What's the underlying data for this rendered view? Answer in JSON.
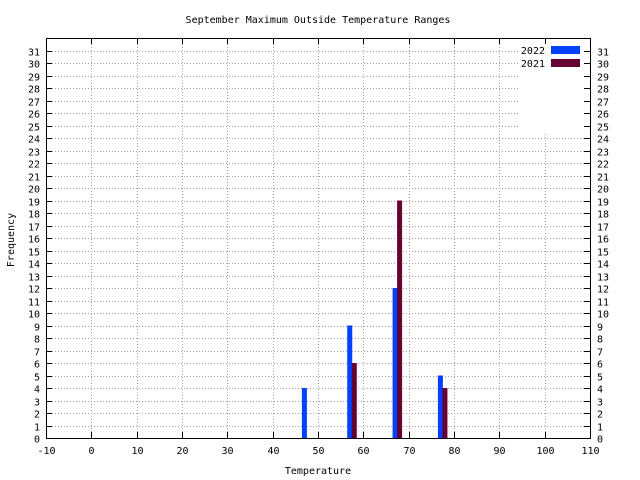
{
  "chart_data": {
    "type": "bar",
    "title": "September Maximum Outside Temperature Ranges",
    "xlabel": "Temperature",
    "ylabel": "Frequency",
    "xlim": [
      -10,
      110
    ],
    "ylim": [
      0,
      32
    ],
    "x_ticks": [
      -10,
      0,
      10,
      20,
      30,
      40,
      50,
      60,
      70,
      80,
      90,
      100,
      110
    ],
    "y_ticks": [
      0,
      1,
      2,
      3,
      4,
      5,
      6,
      7,
      8,
      9,
      10,
      11,
      12,
      13,
      14,
      15,
      16,
      17,
      18,
      19,
      20,
      21,
      22,
      23,
      24,
      25,
      26,
      27,
      28,
      29,
      30,
      31
    ],
    "grid": true,
    "legend_position": "top-right",
    "series": [
      {
        "name": "2022",
        "color": "#0040ff",
        "points": [
          {
            "x": 47,
            "y": 4
          },
          {
            "x": 57,
            "y": 9
          },
          {
            "x": 67,
            "y": 12
          },
          {
            "x": 77,
            "y": 5
          }
        ]
      },
      {
        "name": "2021",
        "color": "#660033",
        "points": [
          {
            "x": 58,
            "y": 6
          },
          {
            "x": 68,
            "y": 19
          },
          {
            "x": 78,
            "y": 4
          }
        ]
      }
    ]
  }
}
